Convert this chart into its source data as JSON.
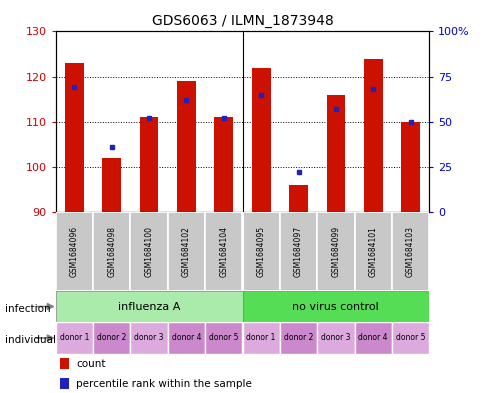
{
  "title": "GDS6063 / ILMN_1873948",
  "samples": [
    "GSM1684096",
    "GSM1684098",
    "GSM1684100",
    "GSM1684102",
    "GSM1684104",
    "GSM1684095",
    "GSM1684097",
    "GSM1684099",
    "GSM1684101",
    "GSM1684103"
  ],
  "red_values": [
    123,
    102,
    111,
    119,
    111,
    122,
    96,
    116,
    124,
    110
  ],
  "blue_pct": [
    69,
    36,
    52,
    62,
    52,
    65,
    22,
    57,
    68,
    50
  ],
  "ylim": [
    90,
    130
  ],
  "yticks_left": [
    90,
    100,
    110,
    120,
    130
  ],
  "yticks_right_vals": [
    0,
    25,
    50,
    75,
    100
  ],
  "infection_groups": [
    {
      "label": "influenza A",
      "color": "#AAEAAA"
    },
    {
      "label": "no virus control",
      "color": "#55DD55"
    }
  ],
  "individual_labels": [
    "donor 1",
    "donor 2",
    "donor 3",
    "donor 4",
    "donor 5",
    "donor 1",
    "donor 2",
    "donor 3",
    "donor 4",
    "donor 5"
  ],
  "individual_colors": [
    "#E8A0E8",
    "#DD88DD",
    "#E8A0E8",
    "#DD88DD",
    "#DD88DD",
    "#E8A0E8",
    "#DD88DD",
    "#E8A0E8",
    "#DD88DD",
    "#E8A0E8"
  ],
  "sample_box_color": "#C8C8C8",
  "bar_width": 0.5,
  "red_color": "#CC1100",
  "blue_color": "#2222BB",
  "legend_count_label": "count",
  "legend_pct_label": "percentile rank within the sample",
  "ylabel_left_color": "#CC0000",
  "ylabel_right_color": "#0000CC",
  "infection_label": "infection",
  "individual_label": "individual",
  "fig_width": 4.85,
  "fig_height": 3.93,
  "dpi": 100
}
